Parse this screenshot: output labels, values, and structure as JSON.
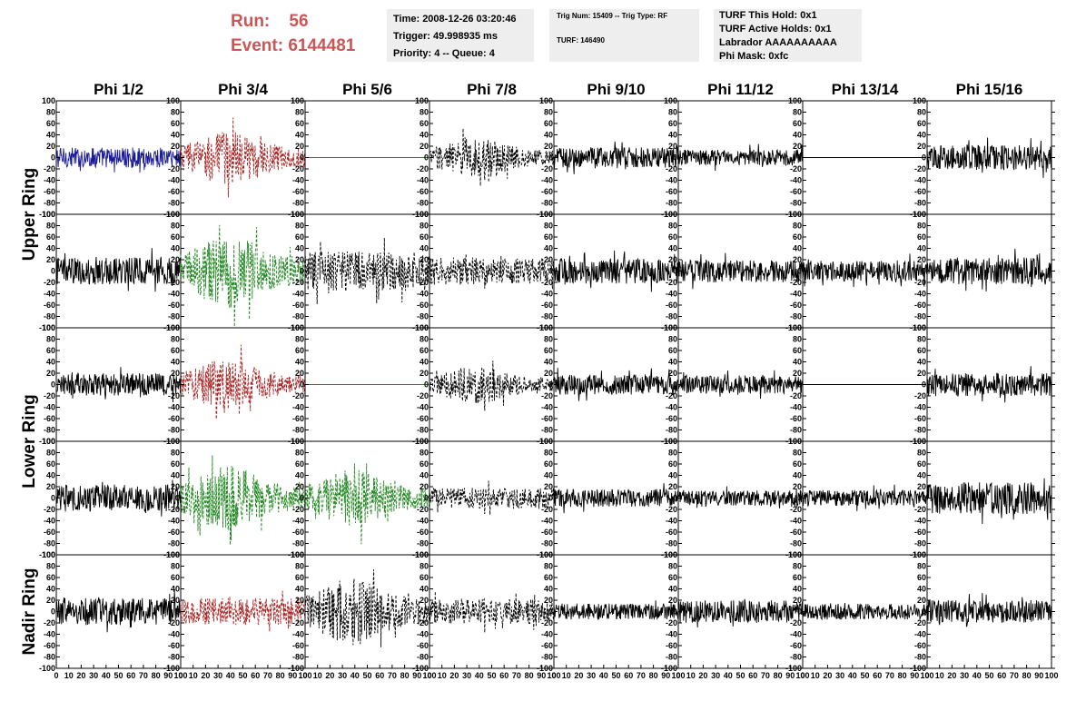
{
  "header": {
    "run_label": "Run:",
    "run_value": "56",
    "event_label": "Event:",
    "event_value": "6144481"
  },
  "info_time": {
    "time": "Time: 2008-12-26 03:20:46",
    "trigger": "Trigger: 49.998935 ms",
    "priority": "Priority: 4 -- Queue: 4"
  },
  "info_trig": {
    "trig": "Trig Num: 15409 -- Trig Type: RF",
    "turf": "TURF: 146490"
  },
  "info_turf": {
    "hold": "TURF This Hold: 0x1",
    "active": "TURF Active Holds: 0x1",
    "labrador": "Labrador AAAAAAAAAA",
    "phimask": "Phi Mask: 0xfc"
  },
  "colors": {
    "blue": "#1a1a99",
    "red": "#aa2222",
    "green": "#228822",
    "black": "#000000",
    "header_red": "#cc5555"
  },
  "chart_data": {
    "type": "line",
    "columns": [
      "Phi 1/2",
      "Phi 3/4",
      "Phi 5/6",
      "Phi 7/8",
      "Phi 9/10",
      "Phi 11/12",
      "Phi 13/14",
      "Phi 15/16"
    ],
    "ring_labels": [
      {
        "label": "Upper Ring",
        "rows": [
          0,
          1
        ]
      },
      {
        "label": "Lower Ring",
        "rows": [
          2,
          3
        ]
      },
      {
        "label": "Nadir Ring",
        "rows": [
          4
        ]
      }
    ],
    "ylim": [
      -100,
      100
    ],
    "y_ticks": [
      -100,
      -80,
      -60,
      -40,
      -20,
      0,
      20,
      40,
      60,
      80,
      100
    ],
    "xlim": [
      0,
      100
    ],
    "x_tick_labels": [
      "0",
      "10",
      "20",
      "30",
      "40",
      "50",
      "60",
      "70",
      "80",
      "90",
      "100"
    ],
    "samples_per_trace": 260,
    "grid": false,
    "panels": [
      {
        "row": 0,
        "col": 0,
        "color": "blue",
        "style": "solid",
        "amp": 18,
        "envelope": "flat"
      },
      {
        "row": 0,
        "col": 1,
        "color": "red",
        "style": "dashed",
        "amp": 40,
        "envelope": "peak"
      },
      {
        "row": 0,
        "col": 2,
        "color": "green",
        "style": "flat",
        "amp": 0,
        "envelope": "flat"
      },
      {
        "row": 0,
        "col": 3,
        "color": "black",
        "style": "dashed",
        "amp": 30,
        "envelope": "peak"
      },
      {
        "row": 0,
        "col": 4,
        "color": "black",
        "style": "solid",
        "amp": 18,
        "envelope": "flat"
      },
      {
        "row": 0,
        "col": 5,
        "color": "black",
        "style": "solid",
        "amp": 14,
        "envelope": "flat"
      },
      {
        "row": 0,
        "col": 6,
        "color": "black",
        "style": "flat",
        "amp": 0,
        "envelope": "flat"
      },
      {
        "row": 0,
        "col": 7,
        "color": "black",
        "style": "solid",
        "amp": 22,
        "envelope": "flat"
      },
      {
        "row": 1,
        "col": 0,
        "color": "black",
        "style": "solid",
        "amp": 24,
        "envelope": "flat"
      },
      {
        "row": 1,
        "col": 1,
        "color": "green",
        "style": "dashed",
        "amp": 55,
        "envelope": "peak"
      },
      {
        "row": 1,
        "col": 2,
        "color": "black",
        "style": "dashed",
        "amp": 35,
        "envelope": "flat"
      },
      {
        "row": 1,
        "col": 3,
        "color": "black",
        "style": "dashed",
        "amp": 24,
        "envelope": "flat"
      },
      {
        "row": 1,
        "col": 4,
        "color": "black",
        "style": "solid",
        "amp": 22,
        "envelope": "flat"
      },
      {
        "row": 1,
        "col": 5,
        "color": "black",
        "style": "solid",
        "amp": 20,
        "envelope": "flat"
      },
      {
        "row": 1,
        "col": 6,
        "color": "black",
        "style": "solid",
        "amp": 18,
        "envelope": "flat"
      },
      {
        "row": 1,
        "col": 7,
        "color": "black",
        "style": "solid",
        "amp": 24,
        "envelope": "flat"
      },
      {
        "row": 2,
        "col": 0,
        "color": "black",
        "style": "solid",
        "amp": 20,
        "envelope": "flat"
      },
      {
        "row": 2,
        "col": 1,
        "color": "red",
        "style": "dashed",
        "amp": 38,
        "envelope": "peak"
      },
      {
        "row": 2,
        "col": 2,
        "color": "green",
        "style": "flat",
        "amp": 0,
        "envelope": "flat"
      },
      {
        "row": 2,
        "col": 3,
        "color": "black",
        "style": "dashed",
        "amp": 28,
        "envelope": "peak"
      },
      {
        "row": 2,
        "col": 4,
        "color": "black",
        "style": "solid",
        "amp": 18,
        "envelope": "flat"
      },
      {
        "row": 2,
        "col": 5,
        "color": "black",
        "style": "solid",
        "amp": 16,
        "envelope": "flat"
      },
      {
        "row": 2,
        "col": 6,
        "color": "black",
        "style": "flat",
        "amp": 0,
        "envelope": "flat"
      },
      {
        "row": 2,
        "col": 7,
        "color": "black",
        "style": "solid",
        "amp": 20,
        "envelope": "flat"
      },
      {
        "row": 3,
        "col": 0,
        "color": "black",
        "style": "solid",
        "amp": 24,
        "envelope": "flat"
      },
      {
        "row": 3,
        "col": 1,
        "color": "green",
        "style": "dashed",
        "amp": 48,
        "envelope": "peak"
      },
      {
        "row": 3,
        "col": 2,
        "color": "green",
        "style": "dashed",
        "amp": 42,
        "envelope": "peak"
      },
      {
        "row": 3,
        "col": 3,
        "color": "black",
        "style": "dashed",
        "amp": 18,
        "envelope": "flat"
      },
      {
        "row": 3,
        "col": 4,
        "color": "black",
        "style": "solid",
        "amp": 16,
        "envelope": "flat"
      },
      {
        "row": 3,
        "col": 5,
        "color": "black",
        "style": "solid",
        "amp": 14,
        "envelope": "flat"
      },
      {
        "row": 3,
        "col": 6,
        "color": "black",
        "style": "solid",
        "amp": 14,
        "envelope": "flat"
      },
      {
        "row": 3,
        "col": 7,
        "color": "black",
        "style": "solid",
        "amp": 28,
        "envelope": "flat"
      },
      {
        "row": 4,
        "col": 0,
        "color": "black",
        "style": "solid",
        "amp": 24,
        "envelope": "flat"
      },
      {
        "row": 4,
        "col": 1,
        "color": "red",
        "style": "dashed",
        "amp": 24,
        "envelope": "flat"
      },
      {
        "row": 4,
        "col": 2,
        "color": "black",
        "style": "dashed",
        "amp": 50,
        "envelope": "peak"
      },
      {
        "row": 4,
        "col": 3,
        "color": "black",
        "style": "dashed",
        "amp": 22,
        "envelope": "flat"
      },
      {
        "row": 4,
        "col": 4,
        "color": "black",
        "style": "solid",
        "amp": 14,
        "envelope": "flat"
      },
      {
        "row": 4,
        "col": 5,
        "color": "black",
        "style": "solid",
        "amp": 20,
        "envelope": "flat"
      },
      {
        "row": 4,
        "col": 6,
        "color": "black",
        "style": "solid",
        "amp": 14,
        "envelope": "flat"
      },
      {
        "row": 4,
        "col": 7,
        "color": "black",
        "style": "solid",
        "amp": 20,
        "envelope": "flat"
      }
    ]
  }
}
